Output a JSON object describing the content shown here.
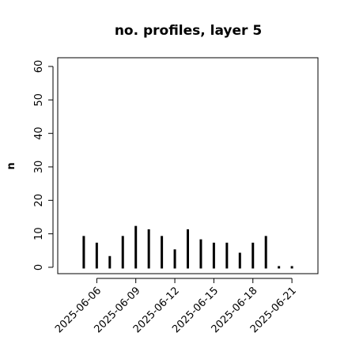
{
  "chart_data": {
    "type": "histogram-lines",
    "title": "no. profiles, layer 5",
    "ylabel": "n",
    "x": [
      "2025-06-05",
      "2025-06-06",
      "2025-06-07",
      "2025-06-08",
      "2025-06-09",
      "2025-06-10",
      "2025-06-11",
      "2025-06-12",
      "2025-06-13",
      "2025-06-14",
      "2025-06-15",
      "2025-06-16",
      "2025-06-17",
      "2025-06-18",
      "2025-06-19",
      "2025-06-20",
      "2025-06-21"
    ],
    "values": [
      9,
      7,
      3,
      9,
      12,
      11,
      9,
      5,
      11,
      8,
      7,
      7,
      4,
      7,
      9,
      0,
      0
    ],
    "color": "#000000",
    "xlim": [
      "2025-06-03",
      "2025-06-23"
    ],
    "xticks": [
      "2025-06-06",
      "2025-06-09",
      "2025-06-12",
      "2025-06-15",
      "2025-06-18",
      "2025-06-21"
    ],
    "xtick_colors": [
      "#000000",
      "#000000",
      "#228b22",
      "#000000",
      "#000000",
      "#000000"
    ],
    "ylim": [
      -1.9,
      62.6
    ],
    "yticks": [
      0,
      10,
      20,
      30,
      40,
      50,
      60
    ]
  }
}
